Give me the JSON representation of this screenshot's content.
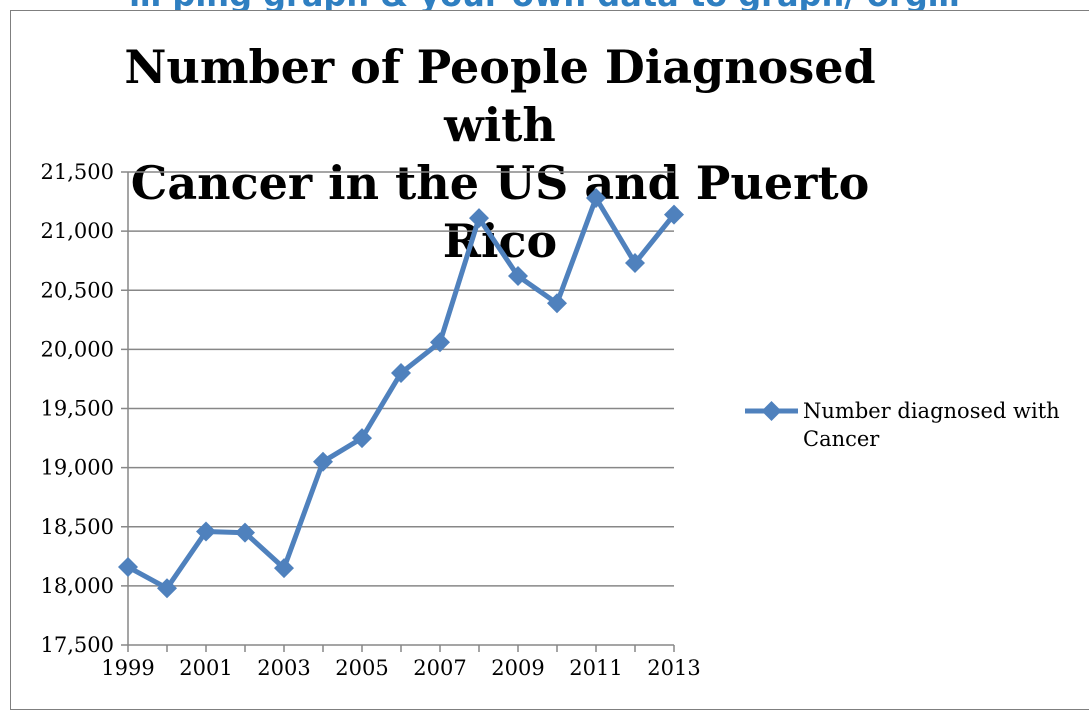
{
  "page_heading": "… ping graph & your own data to graph/ org…",
  "chart_data": {
    "type": "line",
    "title_line1": "Number of People Diagnosed with",
    "title_line2": "Cancer in the US and Puerto Rico",
    "x": [
      1999,
      2000,
      2001,
      2002,
      2003,
      2004,
      2005,
      2006,
      2007,
      2008,
      2009,
      2010,
      2011,
      2012,
      2013
    ],
    "x_tick_labels": [
      "1999",
      "2001",
      "2003",
      "2005",
      "2007",
      "2009",
      "2011",
      "2013"
    ],
    "x_tick_values": [
      1999,
      2001,
      2003,
      2005,
      2007,
      2009,
      2011,
      2013
    ],
    "y_tick_labels": [
      "21,500",
      "21,000",
      "20,500",
      "20,000",
      "19,500",
      "19,000",
      "18,500",
      "18,000",
      "17,500"
    ],
    "y_tick_values": [
      21500,
      21000,
      20500,
      20000,
      19500,
      19000,
      18500,
      18000,
      17500
    ],
    "ylim": [
      17500,
      21500
    ],
    "xlim": [
      1999,
      2013
    ],
    "grid": true,
    "legend_position": "right",
    "series": [
      {
        "name_line1": "Number diagnosed with",
        "name_line2": "Cancer",
        "color": "#4f81bd",
        "marker": "diamond",
        "values": [
          18160,
          17980,
          18460,
          18450,
          18150,
          19050,
          19250,
          19800,
          20060,
          21110,
          20620,
          20390,
          21280,
          20730,
          21140
        ]
      }
    ]
  }
}
